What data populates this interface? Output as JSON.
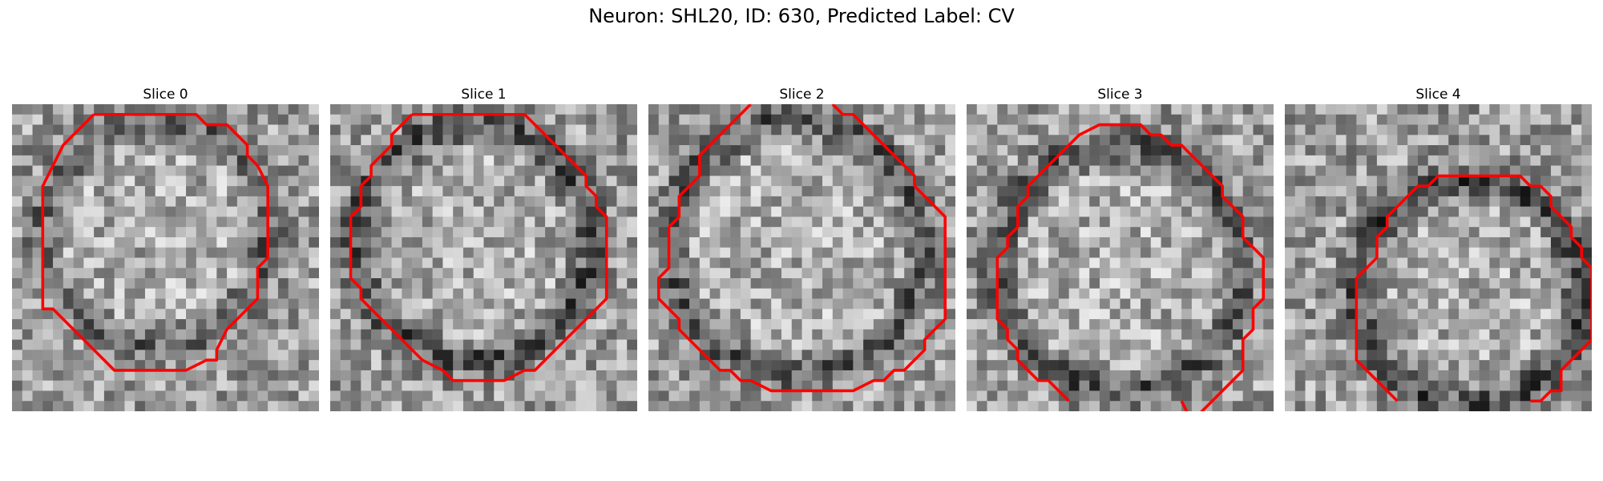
{
  "title": "Neuron: SHL20, ID: 630, Predicted Label: CV",
  "grid_size": 30,
  "contour_color": "#ff0000",
  "slices": [
    {
      "label": "Slice 0",
      "seed": 11,
      "ring": {
        "cx": 14.0,
        "cy": 12.5,
        "r": 11.0,
        "dark": 0.22
      },
      "contour": [
        [
          8,
          1
        ],
        [
          18,
          1
        ],
        [
          19,
          2
        ],
        [
          21,
          2
        ],
        [
          23,
          4
        ],
        [
          23,
          5
        ],
        [
          24,
          6
        ],
        [
          25,
          8
        ],
        [
          25,
          15
        ],
        [
          24,
          16
        ],
        [
          24,
          19
        ],
        [
          23,
          20
        ],
        [
          23,
          20
        ],
        [
          21,
          22
        ],
        [
          20,
          24
        ],
        [
          20,
          25
        ],
        [
          19,
          25
        ],
        [
          17,
          26
        ],
        [
          10,
          26
        ],
        [
          9,
          25
        ],
        [
          7,
          23
        ],
        [
          6,
          22
        ],
        [
          4,
          20
        ],
        [
          3,
          20
        ],
        [
          3,
          18
        ],
        [
          3,
          17
        ],
        [
          3,
          8
        ],
        [
          4,
          6
        ],
        [
          5,
          4
        ],
        [
          7,
          2
        ],
        [
          8,
          1
        ]
      ],
      "open": false
    },
    {
      "label": "Slice 1",
      "seed": 23,
      "ring": {
        "cx": 14.0,
        "cy": 13.5,
        "r": 11.5,
        "dark": 0.3
      },
      "contour": [
        [
          8,
          1
        ],
        [
          19,
          1
        ],
        [
          20,
          2
        ],
        [
          22,
          4
        ],
        [
          23,
          5
        ],
        [
          25,
          7
        ],
        [
          25,
          8
        ],
        [
          26,
          9
        ],
        [
          26,
          10
        ],
        [
          27,
          11
        ],
        [
          27,
          19
        ],
        [
          26,
          20
        ],
        [
          26,
          20
        ],
        [
          25,
          21
        ],
        [
          24,
          22
        ],
        [
          23,
          23
        ],
        [
          22,
          24
        ],
        [
          21,
          25
        ],
        [
          20,
          26
        ],
        [
          19,
          26
        ],
        [
          17,
          27
        ],
        [
          12,
          27
        ],
        [
          11,
          26
        ],
        [
          9,
          25
        ],
        [
          8,
          24
        ],
        [
          6,
          22
        ],
        [
          5,
          21
        ],
        [
          4,
          20
        ],
        [
          3,
          19
        ],
        [
          3,
          18
        ],
        [
          2,
          17
        ],
        [
          2,
          16
        ],
        [
          2,
          14
        ],
        [
          2,
          11
        ],
        [
          3,
          10
        ],
        [
          3,
          8
        ],
        [
          4,
          7
        ],
        [
          4,
          6
        ],
        [
          5,
          5
        ],
        [
          6,
          4
        ],
        [
          6,
          3
        ],
        [
          7,
          2
        ],
        [
          8,
          1
        ]
      ],
      "open": false
    },
    {
      "label": "Slice 2",
      "seed": 37,
      "ring": {
        "cx": 14.5,
        "cy": 14.0,
        "r": 12.5,
        "dark": 0.26
      },
      "contour": [
        [
          18,
          0
        ],
        [
          19,
          1
        ],
        [
          20,
          1
        ],
        [
          22,
          3
        ],
        [
          23,
          4
        ],
        [
          24,
          5
        ],
        [
          26,
          7
        ],
        [
          26,
          8
        ],
        [
          27,
          9
        ],
        [
          28,
          10
        ],
        [
          29,
          11
        ],
        [
          29,
          21
        ],
        [
          28,
          22
        ],
        [
          27,
          23
        ],
        [
          27,
          24
        ],
        [
          26,
          25
        ],
        [
          25,
          26
        ],
        [
          24,
          26
        ],
        [
          23,
          27
        ],
        [
          22,
          27
        ],
        [
          20,
          28
        ],
        [
          12,
          28
        ],
        [
          10,
          27
        ],
        [
          9,
          27
        ],
        [
          8,
          26
        ],
        [
          7,
          26
        ],
        [
          6,
          25
        ],
        [
          5,
          24
        ],
        [
          4,
          23
        ],
        [
          3,
          22
        ],
        [
          3,
          21
        ],
        [
          2,
          20
        ],
        [
          1,
          19
        ],
        [
          1,
          17
        ],
        [
          2,
          16
        ],
        [
          2,
          12
        ],
        [
          3,
          11
        ],
        [
          3,
          9
        ],
        [
          4,
          8
        ],
        [
          5,
          7
        ],
        [
          5,
          5
        ],
        [
          6,
          4
        ],
        [
          7,
          3
        ],
        [
          8,
          2
        ],
        [
          9,
          1
        ],
        [
          10,
          0
        ]
      ],
      "open": true,
      "segments": [
        [
          [
            10,
            0
          ],
          [
            9,
            1
          ],
          [
            8,
            2
          ],
          [
            7,
            3
          ],
          [
            6,
            4
          ],
          [
            5,
            5
          ],
          [
            5,
            7
          ],
          [
            4,
            8
          ],
          [
            3,
            9
          ],
          [
            3,
            11
          ],
          [
            2,
            12
          ],
          [
            2,
            16
          ],
          [
            1,
            17
          ],
          [
            1,
            19
          ],
          [
            2,
            20
          ],
          [
            3,
            21
          ],
          [
            3,
            22
          ],
          [
            4,
            23
          ],
          [
            5,
            24
          ],
          [
            6,
            25
          ],
          [
            7,
            26
          ],
          [
            8,
            26
          ],
          [
            9,
            27
          ],
          [
            10,
            27
          ],
          [
            12,
            28
          ],
          [
            20,
            28
          ],
          [
            22,
            27
          ],
          [
            23,
            27
          ],
          [
            24,
            26
          ],
          [
            25,
            26
          ],
          [
            26,
            25
          ],
          [
            27,
            24
          ],
          [
            27,
            23
          ],
          [
            28,
            22
          ],
          [
            29,
            21
          ],
          [
            29,
            11
          ],
          [
            28,
            10
          ],
          [
            27,
            9
          ],
          [
            26,
            8
          ],
          [
            26,
            7
          ],
          [
            24,
            5
          ],
          [
            23,
            4
          ],
          [
            22,
            3
          ],
          [
            20,
            1
          ],
          [
            19,
            1
          ],
          [
            18,
            0
          ]
        ]
      ]
    },
    {
      "label": "Slice 3",
      "seed": 41,
      "ring": {
        "cx": 15.0,
        "cy": 16.0,
        "r": 12.0,
        "dark": 0.28
      },
      "contour": [],
      "open": true,
      "segments": [
        [
          [
            10,
            29
          ],
          [
            9,
            28
          ],
          [
            8,
            27
          ],
          [
            7,
            27
          ],
          [
            6,
            26
          ],
          [
            5,
            25
          ],
          [
            5,
            24
          ],
          [
            4,
            23
          ],
          [
            4,
            22
          ],
          [
            3,
            21
          ],
          [
            3,
            21
          ],
          [
            3,
            15
          ],
          [
            4,
            14
          ],
          [
            4,
            13
          ],
          [
            5,
            12
          ],
          [
            5,
            10
          ],
          [
            6,
            9
          ],
          [
            6,
            8
          ],
          [
            8,
            6
          ],
          [
            8,
            6
          ],
          [
            9,
            5
          ],
          [
            10,
            4
          ],
          [
            11,
            3
          ],
          [
            11,
            3
          ],
          [
            13,
            2
          ],
          [
            14,
            2
          ],
          [
            15,
            2
          ],
          [
            17,
            2
          ],
          [
            18,
            3
          ],
          [
            19,
            3
          ],
          [
            20,
            4
          ],
          [
            21,
            4
          ],
          [
            22,
            5
          ],
          [
            23,
            6
          ],
          [
            24,
            7
          ],
          [
            25,
            8
          ],
          [
            25,
            9
          ],
          [
            26,
            10
          ],
          [
            27,
            11
          ],
          [
            27,
            13
          ],
          [
            28,
            14
          ],
          [
            29,
            15
          ],
          [
            29,
            19
          ],
          [
            28,
            20
          ],
          [
            28,
            22
          ],
          [
            27,
            23
          ],
          [
            27,
            24
          ],
          [
            27,
            26
          ],
          [
            26,
            27
          ],
          [
            25,
            28
          ],
          [
            25,
            28
          ],
          [
            24,
            29
          ],
          [
            23,
            30
          ],
          [
            22,
            31
          ],
          [
            21,
            29
          ]
        ]
      ]
    },
    {
      "label": "Slice 4",
      "seed": 59,
      "ring": {
        "cx": 18.0,
        "cy": 18.5,
        "r": 11.0,
        "dark": 0.32
      },
      "contour": [],
      "open": true,
      "segments": [
        [
          [
            11,
            29
          ],
          [
            10,
            28
          ],
          [
            9,
            27
          ],
          [
            8,
            26
          ],
          [
            7,
            25
          ],
          [
            7,
            25
          ],
          [
            7,
            17
          ],
          [
            8,
            16
          ],
          [
            8,
            16
          ],
          [
            9,
            15
          ],
          [
            9,
            13
          ],
          [
            10,
            12
          ],
          [
            10,
            11
          ],
          [
            11,
            10
          ],
          [
            11,
            10
          ],
          [
            12,
            9
          ],
          [
            13,
            8
          ],
          [
            14,
            8
          ],
          [
            15,
            7
          ],
          [
            16,
            7
          ],
          [
            17,
            7
          ],
          [
            18,
            7
          ],
          [
            22,
            7
          ],
          [
            23,
            7
          ],
          [
            24,
            8
          ],
          [
            25,
            8
          ],
          [
            26,
            9
          ],
          [
            26,
            10
          ],
          [
            27,
            11
          ],
          [
            28,
            12
          ],
          [
            28,
            13
          ],
          [
            29,
            14
          ],
          [
            29,
            15
          ],
          [
            29,
            15
          ],
          [
            30,
            16
          ],
          [
            30,
            17
          ],
          [
            30,
            23
          ],
          [
            29,
            24
          ],
          [
            28,
            25
          ],
          [
            27,
            26
          ],
          [
            27,
            28
          ],
          [
            26,
            28
          ],
          [
            25,
            29
          ],
          [
            24,
            29
          ]
        ]
      ]
    }
  ]
}
